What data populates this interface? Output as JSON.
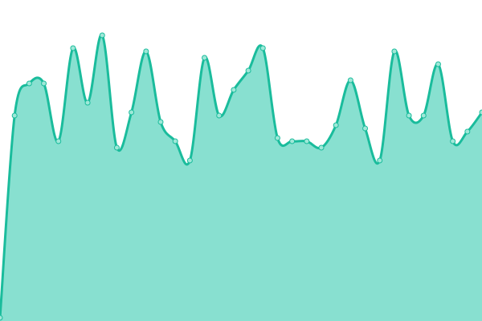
{
  "chart_data": {
    "type": "area",
    "title": "",
    "xlabel": "",
    "ylabel": "",
    "x": [
      0,
      1,
      2,
      3,
      4,
      5,
      6,
      7,
      8,
      9,
      10,
      11,
      12,
      13,
      14,
      15,
      16,
      17,
      18,
      19,
      20,
      21,
      22,
      23,
      24,
      25,
      26,
      27,
      28,
      29,
      30,
      31,
      32,
      33
    ],
    "series": [
      {
        "values": [
          1,
          64,
          74,
          74,
          56,
          85,
          68,
          89,
          54,
          65,
          84,
          62,
          56,
          50,
          82,
          64,
          72,
          78,
          85,
          57,
          56,
          56,
          54,
          61,
          75,
          60,
          50,
          84,
          64,
          64,
          80,
          56,
          59,
          65
        ]
      }
    ],
    "ylim": [
      0,
      100
    ],
    "grid": false,
    "axes_visible": false,
    "smooth": true,
    "markers": true,
    "colors": {
      "fill": "#88e0d0",
      "stroke": "#1abc9c",
      "marker_fill": "#9fe8d8"
    }
  }
}
